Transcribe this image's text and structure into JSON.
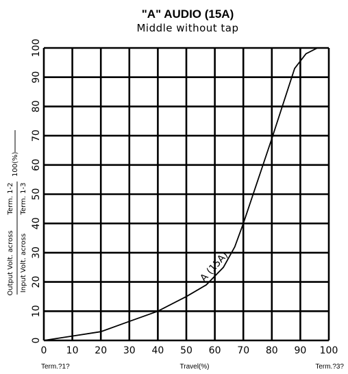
{
  "chart_data": {
    "type": "line",
    "title": "\"A\" AUDIO (15A)",
    "subtitle": "Middle without tap",
    "xlabel": "Travel(%)",
    "x_end_left": "Term.?1?",
    "x_end_right": "Term.?3?",
    "ylabel_num_1": "Output Volt. across",
    "ylabel_num_2": "Term. 1-2",
    "ylabel_den_1": "Input Volt. across",
    "ylabel_den_2": "Term. 1-3",
    "ylabel_tail": "100(%)",
    "xlim": [
      0,
      100
    ],
    "ylim": [
      0,
      100
    ],
    "xticks": [
      0,
      10,
      20,
      30,
      40,
      50,
      60,
      70,
      80,
      90,
      100
    ],
    "yticks": [
      0,
      10,
      20,
      30,
      40,
      50,
      60,
      70,
      80,
      90,
      100
    ],
    "grid": true,
    "series": [
      {
        "name": "A (15A)",
        "x": [
          0,
          10,
          20,
          30,
          40,
          50,
          57,
          63,
          67,
          70,
          80,
          88,
          92,
          96
        ],
        "y": [
          0,
          1.5,
          3,
          6.5,
          10,
          15,
          19,
          25,
          32,
          40,
          69,
          93,
          98,
          100
        ]
      }
    ]
  }
}
